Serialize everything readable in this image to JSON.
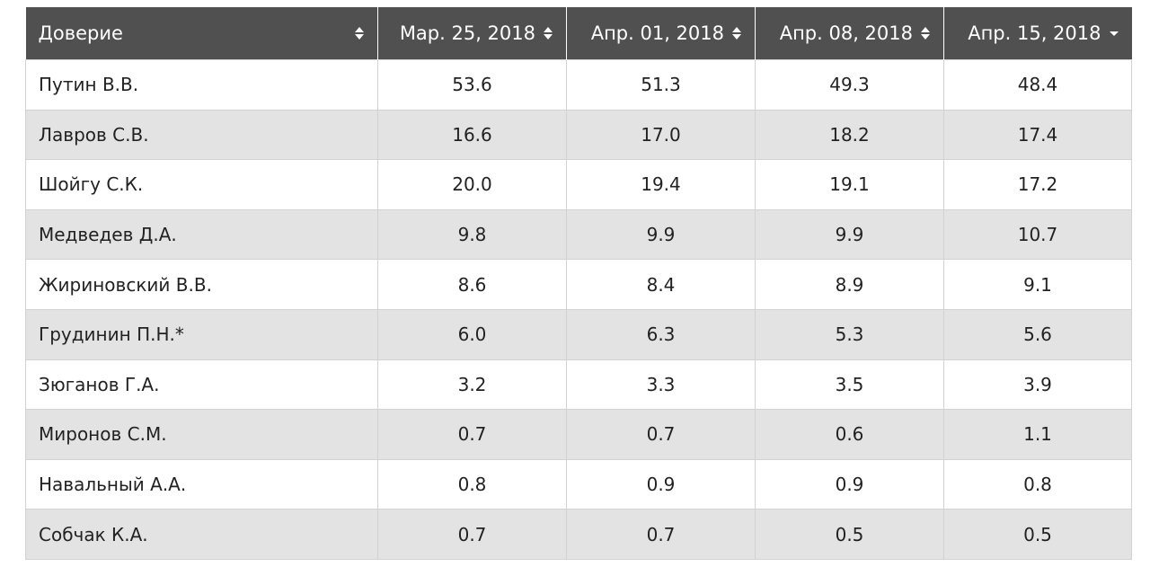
{
  "table": {
    "headers": [
      {
        "label": "Доверие",
        "sort": "both"
      },
      {
        "label": "Мар. 25, 2018",
        "sort": "both"
      },
      {
        "label": "Апр. 01, 2018",
        "sort": "both"
      },
      {
        "label": "Апр. 08, 2018",
        "sort": "both"
      },
      {
        "label": "Апр. 15, 2018",
        "sort": "desc"
      }
    ],
    "rows": [
      {
        "name": "Путин В.В.",
        "values": [
          "53.6",
          "51.3",
          "49.3",
          "48.4"
        ]
      },
      {
        "name": "Лавров С.В.",
        "values": [
          "16.6",
          "17.0",
          "18.2",
          "17.4"
        ]
      },
      {
        "name": "Шойгу С.К.",
        "values": [
          "20.0",
          "19.4",
          "19.1",
          "17.2"
        ]
      },
      {
        "name": "Медведев Д.А.",
        "values": [
          "9.8",
          "9.9",
          "9.9",
          "10.7"
        ]
      },
      {
        "name": "Жириновский В.В.",
        "values": [
          "8.6",
          "8.4",
          "8.9",
          "9.1"
        ]
      },
      {
        "name": "Грудинин П.Н.*",
        "values": [
          "6.0",
          "6.3",
          "5.3",
          "5.6"
        ]
      },
      {
        "name": "Зюганов Г.А.",
        "values": [
          "3.2",
          "3.3",
          "3.5",
          "3.9"
        ]
      },
      {
        "name": "Миронов С.М.",
        "values": [
          "0.7",
          "0.7",
          "0.6",
          "1.1"
        ]
      },
      {
        "name": "Навальный А.А.",
        "values": [
          "0.8",
          "0.9",
          "0.9",
          "0.8"
        ]
      },
      {
        "name": "Собчак К.А.",
        "values": [
          "0.7",
          "0.7",
          "0.5",
          "0.5"
        ]
      }
    ]
  },
  "colors": {
    "header_bg": "#505050",
    "header_text": "#ffffff",
    "row_alt_bg": "#e3e3e3",
    "border": "#d2d2d2"
  }
}
